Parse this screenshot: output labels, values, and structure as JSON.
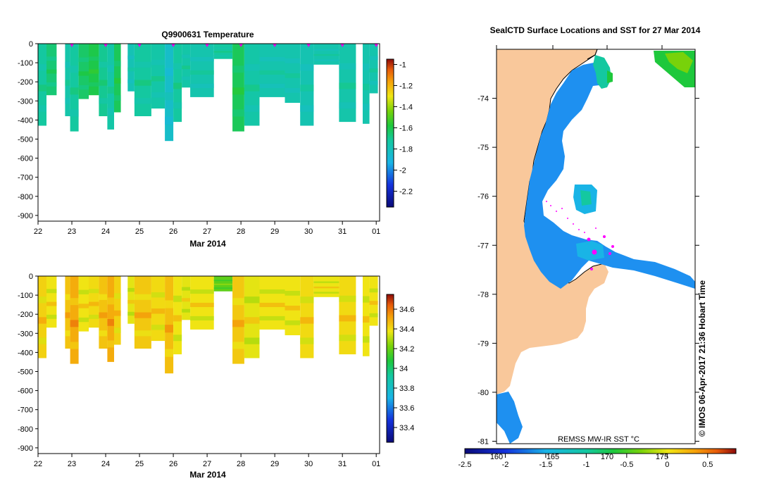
{
  "chart_data": [
    {
      "type": "heatmap",
      "title": "Q9900631  Temperature",
      "xlabel": "Mar 2014",
      "ylabel": "",
      "x_ticks": [
        "22",
        "23",
        "24",
        "25",
        "26",
        "27",
        "28",
        "29",
        "30",
        "31",
        "01"
      ],
      "y_ticks": [
        "0",
        "-100",
        "-200",
        "-300",
        "-400",
        "-500",
        "-600",
        "-700",
        "-800",
        "-900"
      ],
      "ylim": [
        -930,
        0
      ],
      "colorbar": {
        "ticks": [
          "-1",
          "-1.2",
          "-1.4",
          "-1.6",
          "-1.8",
          "-2",
          "-2.2"
        ],
        "range": [
          -2.35,
          -0.95
        ]
      },
      "profile_markers_days": [
        23,
        24,
        25,
        26,
        27,
        28,
        29,
        30,
        31,
        32
      ],
      "profiles": [
        {
          "d0": 22.0,
          "d1": 22.25,
          "depth": 430,
          "value": -1.72
        },
        {
          "d0": 22.25,
          "d1": 22.55,
          "depth": 270,
          "value": -1.66
        },
        {
          "d0": 22.8,
          "d1": 22.95,
          "depth": 380,
          "value": -1.75
        },
        {
          "d0": 22.95,
          "d1": 23.2,
          "depth": 460,
          "value": -1.72
        },
        {
          "d0": 23.2,
          "d1": 23.5,
          "depth": 290,
          "value": -1.64
        },
        {
          "d0": 23.5,
          "d1": 23.8,
          "depth": 270,
          "value": -1.6
        },
        {
          "d0": 23.8,
          "d1": 24.05,
          "depth": 380,
          "value": -1.7
        },
        {
          "d0": 24.05,
          "d1": 24.25,
          "depth": 450,
          "value": -1.74
        },
        {
          "d0": 24.25,
          "d1": 24.45,
          "depth": 360,
          "value": -1.62
        },
        {
          "d0": 24.65,
          "d1": 24.85,
          "depth": 250,
          "value": -1.78
        },
        {
          "d0": 24.85,
          "d1": 25.35,
          "depth": 380,
          "value": -1.72
        },
        {
          "d0": 25.35,
          "d1": 25.75,
          "depth": 340,
          "value": -1.74
        },
        {
          "d0": 25.75,
          "d1": 26.0,
          "depth": 510,
          "value": -1.84
        },
        {
          "d0": 26.0,
          "d1": 26.25,
          "depth": 410,
          "value": -1.72
        },
        {
          "d0": 26.25,
          "d1": 26.5,
          "depth": 230,
          "value": -1.74
        },
        {
          "d0": 26.5,
          "d1": 27.2,
          "depth": 280,
          "value": -1.76
        },
        {
          "d0": 27.2,
          "d1": 27.75,
          "depth": 80,
          "value": -1.72
        },
        {
          "d0": 27.75,
          "d1": 28.1,
          "depth": 460,
          "value": -1.62
        },
        {
          "d0": 28.1,
          "d1": 28.55,
          "depth": 430,
          "value": -1.74
        },
        {
          "d0": 28.55,
          "d1": 29.3,
          "depth": 280,
          "value": -1.76
        },
        {
          "d0": 29.3,
          "d1": 29.75,
          "depth": 310,
          "value": -1.76
        },
        {
          "d0": 29.75,
          "d1": 30.15,
          "depth": 430,
          "value": -1.77
        },
        {
          "d0": 30.15,
          "d1": 30.9,
          "depth": 110,
          "value": -1.76
        },
        {
          "d0": 30.9,
          "d1": 31.4,
          "depth": 410,
          "value": -1.75
        },
        {
          "d0": 31.6,
          "d1": 31.8,
          "depth": 420,
          "value": -1.76
        },
        {
          "d0": 31.8,
          "d1": 32.05,
          "depth": 260,
          "value": -1.76
        }
      ]
    },
    {
      "type": "heatmap",
      "title": "",
      "xlabel": "Mar 2014",
      "ylabel": "",
      "x_ticks": [
        "22",
        "23",
        "24",
        "25",
        "26",
        "27",
        "28",
        "29",
        "30",
        "31",
        "01"
      ],
      "y_ticks": [
        "0",
        "-100",
        "-200",
        "-300",
        "-400",
        "-500",
        "-600",
        "-700",
        "-800",
        "-900"
      ],
      "ylim": [
        -930,
        0
      ],
      "colorbar": {
        "ticks": [
          "34.6",
          "34.4",
          "34.2",
          "34",
          "33.8",
          "33.6",
          "33.4"
        ],
        "range": [
          33.25,
          34.75
        ]
      },
      "profiles": [
        {
          "d0": 22.0,
          "d1": 22.25,
          "depth": 430,
          "value": 34.42
        },
        {
          "d0": 22.25,
          "d1": 22.55,
          "depth": 270,
          "value": 34.38
        },
        {
          "d0": 22.8,
          "d1": 22.95,
          "depth": 380,
          "value": 34.45
        },
        {
          "d0": 22.95,
          "d1": 23.2,
          "depth": 460,
          "value": 34.5
        },
        {
          "d0": 23.2,
          "d1": 23.5,
          "depth": 290,
          "value": 34.38
        },
        {
          "d0": 23.5,
          "d1": 23.8,
          "depth": 270,
          "value": 34.4
        },
        {
          "d0": 23.8,
          "d1": 24.05,
          "depth": 380,
          "value": 34.45
        },
        {
          "d0": 24.05,
          "d1": 24.25,
          "depth": 450,
          "value": 34.5
        },
        {
          "d0": 24.25,
          "d1": 24.45,
          "depth": 360,
          "value": 34.42
        },
        {
          "d0": 24.65,
          "d1": 24.85,
          "depth": 250,
          "value": 34.36
        },
        {
          "d0": 24.85,
          "d1": 25.35,
          "depth": 380,
          "value": 34.44
        },
        {
          "d0": 25.35,
          "d1": 25.75,
          "depth": 340,
          "value": 34.4
        },
        {
          "d0": 25.75,
          "d1": 26.0,
          "depth": 510,
          "value": 34.46
        },
        {
          "d0": 26.0,
          "d1": 26.25,
          "depth": 410,
          "value": 34.38
        },
        {
          "d0": 26.25,
          "d1": 26.5,
          "depth": 230,
          "value": 34.36
        },
        {
          "d0": 26.5,
          "d1": 27.2,
          "depth": 280,
          "value": 34.38
        },
        {
          "d0": 27.2,
          "d1": 27.75,
          "depth": 80,
          "value": 34.18
        },
        {
          "d0": 27.75,
          "d1": 28.1,
          "depth": 460,
          "value": 34.44
        },
        {
          "d0": 28.1,
          "d1": 28.55,
          "depth": 430,
          "value": 34.36
        },
        {
          "d0": 28.55,
          "d1": 29.3,
          "depth": 280,
          "value": 34.38
        },
        {
          "d0": 29.3,
          "d1": 29.75,
          "depth": 310,
          "value": 34.38
        },
        {
          "d0": 29.75,
          "d1": 30.15,
          "depth": 430,
          "value": 34.4
        },
        {
          "d0": 30.15,
          "d1": 30.9,
          "depth": 110,
          "value": 34.37
        },
        {
          "d0": 30.9,
          "d1": 31.4,
          "depth": 410,
          "value": 34.4
        },
        {
          "d0": 31.6,
          "d1": 31.8,
          "depth": 420,
          "value": 34.38
        },
        {
          "d0": 31.8,
          "d1": 32.05,
          "depth": 260,
          "value": 34.38
        }
      ]
    },
    {
      "type": "heatmap",
      "title": "SealCTD Surface Locations and SST for 27 Mar 2014",
      "xlabel": "",
      "ylabel": "",
      "x_ticks": [
        "160",
        "165",
        "170",
        "175"
      ],
      "y_ticks": [
        "-74",
        "-75",
        "-76",
        "-77",
        "-78",
        "-79",
        "-80",
        "-81"
      ],
      "ylim": [
        -81.05,
        -73.0
      ],
      "source_label": "REMSS MW-IR SST °C",
      "side_label": "©  IMOS 06-Apr-2017 21:36 Hobart Time",
      "colorbar": {
        "ticks": [
          "-2.5",
          "-2",
          "-1.5",
          "-1",
          "-0.5",
          "0",
          "0.5"
        ],
        "range": [
          -2.5,
          0.85
        ]
      }
    }
  ]
}
